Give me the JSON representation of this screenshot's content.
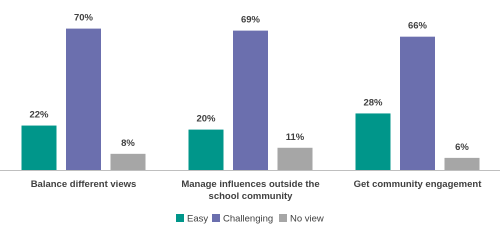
{
  "chart_data": {
    "type": "bar",
    "categories": [
      "Balance different views",
      "Manage influences outside the school community",
      "Get community engagement"
    ],
    "series": [
      {
        "name": "Easy",
        "color": "#00968a",
        "values": [
          22,
          20,
          28
        ],
        "value_labels": [
          "22%",
          "20%",
          "28%"
        ]
      },
      {
        "name": "Challenging",
        "color": "#6b6fae",
        "values": [
          70,
          69,
          66
        ],
        "value_labels": [
          "70%",
          "69%",
          "66%"
        ]
      },
      {
        "name": "No view",
        "color": "#a6a6a6",
        "values": [
          8,
          11,
          6
        ],
        "value_labels": [
          "8%",
          "11%",
          "6%"
        ]
      }
    ],
    "legend": "bottom"
  }
}
